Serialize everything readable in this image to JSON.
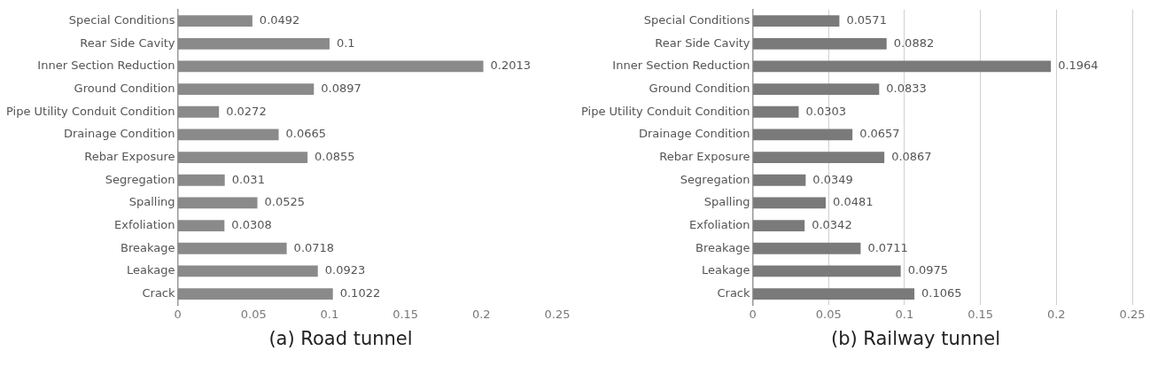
{
  "chart_data": [
    {
      "type": "bar",
      "orientation": "horizontal",
      "categories": [
        "Special Conditions",
        "Rear Side Cavity",
        "Inner Section Reduction",
        "Ground Condition",
        "Pipe Utility Conduit Condition",
        "Drainage Condition",
        "Rebar Exposure",
        "Segregation",
        "Spalling",
        "Exfoliation",
        "Breakage",
        "Leakage",
        "Crack"
      ],
      "values": [
        0.0492,
        0.1,
        0.2013,
        0.0897,
        0.0272,
        0.0665,
        0.0855,
        0.031,
        0.0525,
        0.0308,
        0.0718,
        0.0923,
        0.1022
      ],
      "color": "#8a8a8a",
      "xlim": [
        0,
        0.25
      ],
      "xticks": [
        0,
        0.05,
        0.1,
        0.15,
        0.2,
        0.25
      ],
      "grid": false,
      "legend": false,
      "data_labels": true,
      "annotations": [
        "(a) Road tunnel"
      ]
    },
    {
      "type": "bar",
      "orientation": "horizontal",
      "categories": [
        "Special Conditions",
        "Rear Side Cavity",
        "Inner Section Reduction",
        "Ground Condition",
        "Pipe Utility Conduit Condition",
        "Drainage Condition",
        "Rebar Exposure",
        "Segregation",
        "Spalling",
        "Exfoliation",
        "Breakage",
        "Leakage",
        "Crack"
      ],
      "values": [
        0.0571,
        0.0882,
        0.1964,
        0.0833,
        0.0303,
        0.0657,
        0.0867,
        0.0349,
        0.0481,
        0.0342,
        0.0711,
        0.0975,
        0.1065
      ],
      "color": "#7a7a7a",
      "xlim": [
        0,
        0.25
      ],
      "xticks": [
        0,
        0.05,
        0.1,
        0.15,
        0.2,
        0.25
      ],
      "grid": "x",
      "legend": false,
      "data_labels": true,
      "annotations": [
        "(b) Railway tunnel"
      ]
    }
  ]
}
